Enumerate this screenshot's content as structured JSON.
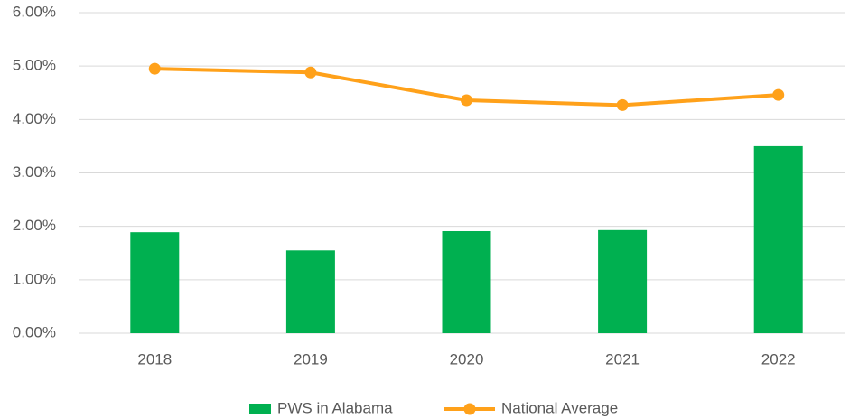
{
  "chart_data": {
    "type": "bar",
    "categories": [
      "2018",
      "2019",
      "2020",
      "2021",
      "2022"
    ],
    "series": [
      {
        "name": "PWS in Alabama",
        "type": "bar",
        "color": "#00b050",
        "values": [
          1.89,
          1.55,
          1.91,
          1.93,
          3.5
        ]
      },
      {
        "name": "National Average",
        "type": "line",
        "color": "#ffa11a",
        "values": [
          4.95,
          4.88,
          4.36,
          4.27,
          4.46
        ]
      }
    ],
    "ylim": [
      0,
      6
    ],
    "yticks": [
      {
        "value": 0,
        "label": "0.00%"
      },
      {
        "value": 1,
        "label": "1.00%"
      },
      {
        "value": 2,
        "label": "2.00%"
      },
      {
        "value": 3,
        "label": "3.00%"
      },
      {
        "value": 4,
        "label": "4.00%"
      },
      {
        "value": 5,
        "label": "5.00%"
      },
      {
        "value": 6,
        "label": "6.00%"
      }
    ],
    "grid": true,
    "legend": "bottom"
  }
}
